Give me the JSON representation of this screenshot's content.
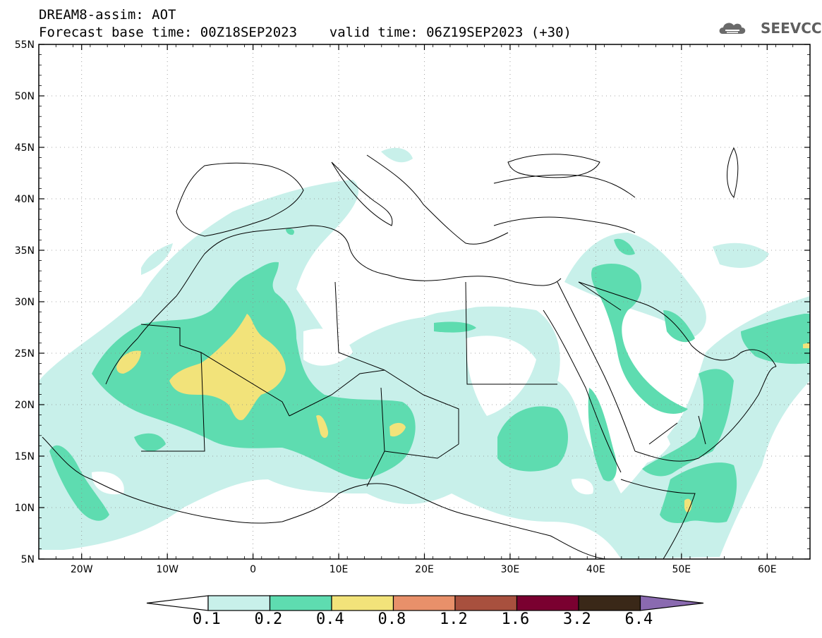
{
  "title_line1": "DREAM8-assim: AOT",
  "title_line2": "Forecast base time: 00Z18SEP2023    valid time: 06Z19SEP2023 (+30)",
  "logo_text": "SEEVCCC",
  "map": {
    "lon_range": [
      -25,
      65
    ],
    "lat_range": [
      5,
      55
    ],
    "lat_labels": [
      "55N",
      "50N",
      "45N",
      "40N",
      "35N",
      "30N",
      "25N",
      "20N",
      "15N",
      "10N",
      "5N"
    ],
    "lon_labels": [
      "20W",
      "10W",
      "0",
      "10E",
      "20E",
      "30E",
      "40E",
      "50E",
      "60E"
    ]
  },
  "colorbar": {
    "levels": [
      "0.1",
      "0.2",
      "0.4",
      "0.8",
      "1.2",
      "1.6",
      "3.2",
      "6.4"
    ],
    "colors": [
      "#ffffff",
      "#c8f0ea",
      "#5edcb0",
      "#f2e37a",
      "#e8906a",
      "#a8503e",
      "#7a0030",
      "#3a2818",
      "#8a6ab0"
    ]
  }
}
